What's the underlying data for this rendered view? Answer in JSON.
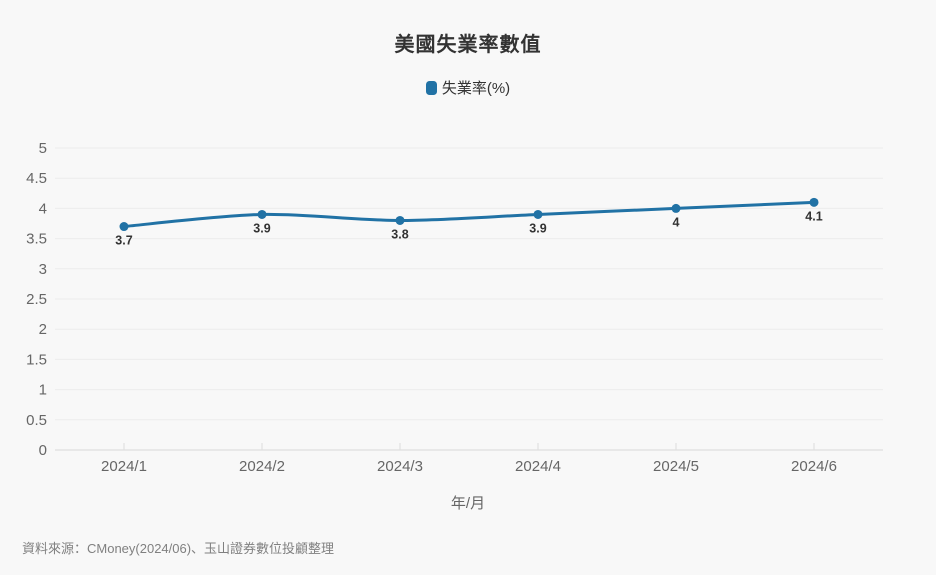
{
  "title": "美國失業率數值",
  "legend": {
    "label": "失業率(%)"
  },
  "x_axis_title": "年/月",
  "footer": "資料來源：CMoney(2024/06)、玉山證券數位投顧整理",
  "colors": {
    "series": "#2172a5",
    "background": "#f8f8f8",
    "grid": "#ececec",
    "axis": "#d9d9d9",
    "tick": "#dddddd",
    "tick_label": "#666666",
    "data_label": "#333333"
  },
  "chart_data": {
    "type": "line",
    "title": "美國失業率數值",
    "categories": [
      "2024/1",
      "2024/2",
      "2024/3",
      "2024/4",
      "2024/5",
      "2024/6"
    ],
    "series": [
      {
        "name": "失業率(%)",
        "values": [
          3.7,
          3.9,
          3.8,
          3.9,
          4,
          4.1
        ]
      }
    ],
    "data_labels": [
      "3.7",
      "3.9",
      "3.8",
      "3.9",
      "4",
      "4.1"
    ],
    "xlabel": "年/月",
    "ylabel": "",
    "ylim": [
      0,
      5
    ],
    "y_tick_step": 0.5,
    "y_ticks": [
      "0",
      "0.5",
      "1",
      "1.5",
      "2",
      "2.5",
      "3",
      "3.5",
      "4",
      "4.5",
      "5"
    ],
    "grid": true,
    "legend_position": "top",
    "smooth": true
  }
}
